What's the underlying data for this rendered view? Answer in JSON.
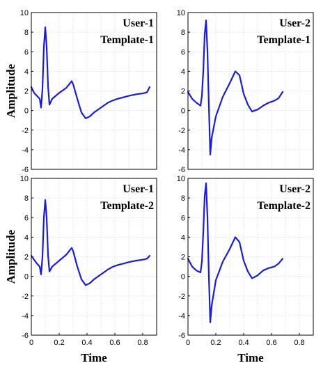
{
  "chart_data": [
    {
      "type": "line",
      "annotation_lines": [
        "User-1",
        "Template-1"
      ],
      "ylabel": "Amplitude",
      "xlabel": "",
      "xlim": [
        0,
        0.9
      ],
      "ylim": [
        -6,
        10
      ],
      "xticks": [],
      "yticks": [
        "-6",
        "-4",
        "-2",
        "0",
        "2",
        "4",
        "6",
        "8",
        "10"
      ],
      "series": [
        {
          "color": "#1a1ae6",
          "x": [
            0,
            0.02,
            0.04,
            0.06,
            0.07,
            0.08,
            0.09,
            0.1,
            0.11,
            0.12,
            0.13,
            0.15,
            0.2,
            0.25,
            0.29,
            0.3,
            0.33,
            0.36,
            0.39,
            0.42,
            0.45,
            0.48,
            0.52,
            0.55,
            0.58,
            0.62,
            0.66,
            0.7,
            0.75,
            0.8,
            0.83,
            0.85
          ],
          "y": [
            2.4,
            1.8,
            1.5,
            1.2,
            0.3,
            2.2,
            6.5,
            8.5,
            6.5,
            2.5,
            0.6,
            1.2,
            1.8,
            2.3,
            3.0,
            2.7,
            1.2,
            -0.2,
            -0.8,
            -0.6,
            -0.2,
            0.1,
            0.5,
            0.8,
            1.0,
            1.2,
            1.35,
            1.5,
            1.65,
            1.75,
            1.85,
            2.4
          ]
        }
      ]
    },
    {
      "type": "line",
      "annotation_lines": [
        "User-2",
        "Template-1"
      ],
      "ylabel": "",
      "xlabel": "",
      "xlim": [
        0,
        0.9
      ],
      "ylim": [
        -6,
        10
      ],
      "xticks": [],
      "yticks": [
        "-6",
        "-4",
        "-2",
        "0",
        "2",
        "4",
        "6",
        "8",
        "10"
      ],
      "series": [
        {
          "color": "#1a1ae6",
          "x": [
            0,
            0.03,
            0.06,
            0.09,
            0.1,
            0.11,
            0.12,
            0.13,
            0.14,
            0.15,
            0.16,
            0.17,
            0.2,
            0.25,
            0.3,
            0.34,
            0.37,
            0.4,
            0.43,
            0.46,
            0.5,
            0.54,
            0.58,
            0.62,
            0.65,
            0.68
          ],
          "y": [
            1.9,
            1.2,
            0.8,
            0.5,
            1.5,
            4.0,
            7.8,
            9.2,
            6.0,
            0.5,
            -4.5,
            -2.8,
            -0.6,
            1.4,
            2.8,
            4.0,
            3.6,
            1.7,
            0.6,
            -0.1,
            0.1,
            0.5,
            0.8,
            1.0,
            1.25,
            1.9
          ]
        }
      ]
    },
    {
      "type": "line",
      "annotation_lines": [
        "User-1",
        "Template-2"
      ],
      "ylabel": "Amplitude",
      "xlabel": "Time",
      "xlim": [
        0,
        0.9
      ],
      "ylim": [
        -6,
        10
      ],
      "xticks": [
        "0",
        "0.2",
        "0.4",
        "0.6",
        "0.8"
      ],
      "yticks": [
        "-6",
        "-4",
        "-2",
        "0",
        "2",
        "4",
        "6",
        "8",
        "10"
      ],
      "series": [
        {
          "color": "#1a1ae6",
          "x": [
            0,
            0.02,
            0.04,
            0.06,
            0.07,
            0.08,
            0.09,
            0.1,
            0.11,
            0.12,
            0.13,
            0.15,
            0.2,
            0.25,
            0.29,
            0.3,
            0.33,
            0.36,
            0.39,
            0.42,
            0.45,
            0.48,
            0.52,
            0.55,
            0.58,
            0.62,
            0.66,
            0.7,
            0.75,
            0.8,
            0.83,
            0.85
          ],
          "y": [
            2.1,
            1.7,
            1.3,
            1.0,
            0.2,
            2.0,
            6.0,
            7.8,
            6.0,
            2.2,
            0.5,
            1.0,
            1.6,
            2.2,
            2.9,
            2.6,
            1.0,
            -0.3,
            -0.9,
            -0.7,
            -0.3,
            0.0,
            0.4,
            0.7,
            0.95,
            1.15,
            1.3,
            1.45,
            1.6,
            1.7,
            1.8,
            2.1
          ]
        }
      ]
    },
    {
      "type": "line",
      "annotation_lines": [
        "User-2",
        "Template-2"
      ],
      "ylabel": "",
      "xlabel": "Time",
      "xlim": [
        0,
        0.9
      ],
      "ylim": [
        -6,
        10
      ],
      "xticks": [
        "0",
        "0.2",
        "0.4",
        "0.6",
        "0.8"
      ],
      "yticks": [
        "-6",
        "-4",
        "-2",
        "0",
        "2",
        "4",
        "6",
        "8",
        "10"
      ],
      "series": [
        {
          "color": "#1a1ae6",
          "x": [
            0,
            0.03,
            0.06,
            0.09,
            0.1,
            0.11,
            0.12,
            0.13,
            0.14,
            0.15,
            0.16,
            0.17,
            0.2,
            0.25,
            0.3,
            0.34,
            0.37,
            0.4,
            0.43,
            0.46,
            0.5,
            0.54,
            0.58,
            0.62,
            0.65,
            0.68
          ],
          "y": [
            1.8,
            1.0,
            0.6,
            0.4,
            1.5,
            4.5,
            8.2,
            9.5,
            6.0,
            0.0,
            -4.7,
            -3.0,
            -0.4,
            1.5,
            2.8,
            4.0,
            3.5,
            1.6,
            0.5,
            -0.2,
            0.1,
            0.6,
            0.85,
            1.0,
            1.3,
            1.8
          ]
        }
      ]
    }
  ]
}
